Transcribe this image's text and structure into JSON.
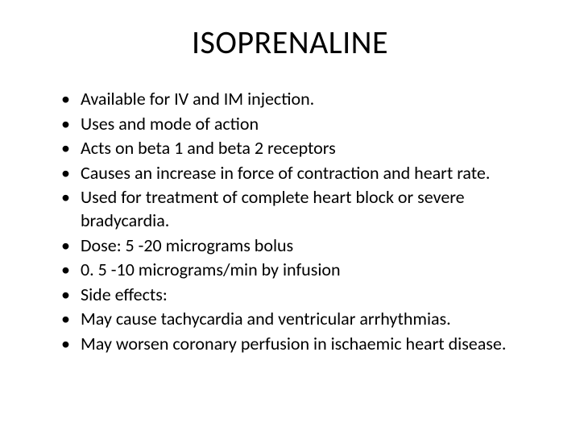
{
  "title": "ISOPRENALINE",
  "bullets": [
    "Available for IV and IM injection.",
    "Uses and mode of action",
    "Acts on beta 1 and beta 2 receptors",
    "Causes an increase in force of contraction and heart rate.",
    "Used for treatment of complete heart block or severe bradycardia.",
    "Dose: 5 -20 micrograms bolus",
    "0. 5 -10 micrograms/min by infusion",
    "Side effects:",
    "May cause tachycardia and ventricular arrhythmias.",
    "May worsen coronary perfusion in ischaemic heart disease."
  ],
  "colors": {
    "background": "#ffffff",
    "text": "#000000"
  },
  "typography": {
    "title_fontsize": 40,
    "body_fontsize": 22,
    "font_family": "Calibri"
  }
}
